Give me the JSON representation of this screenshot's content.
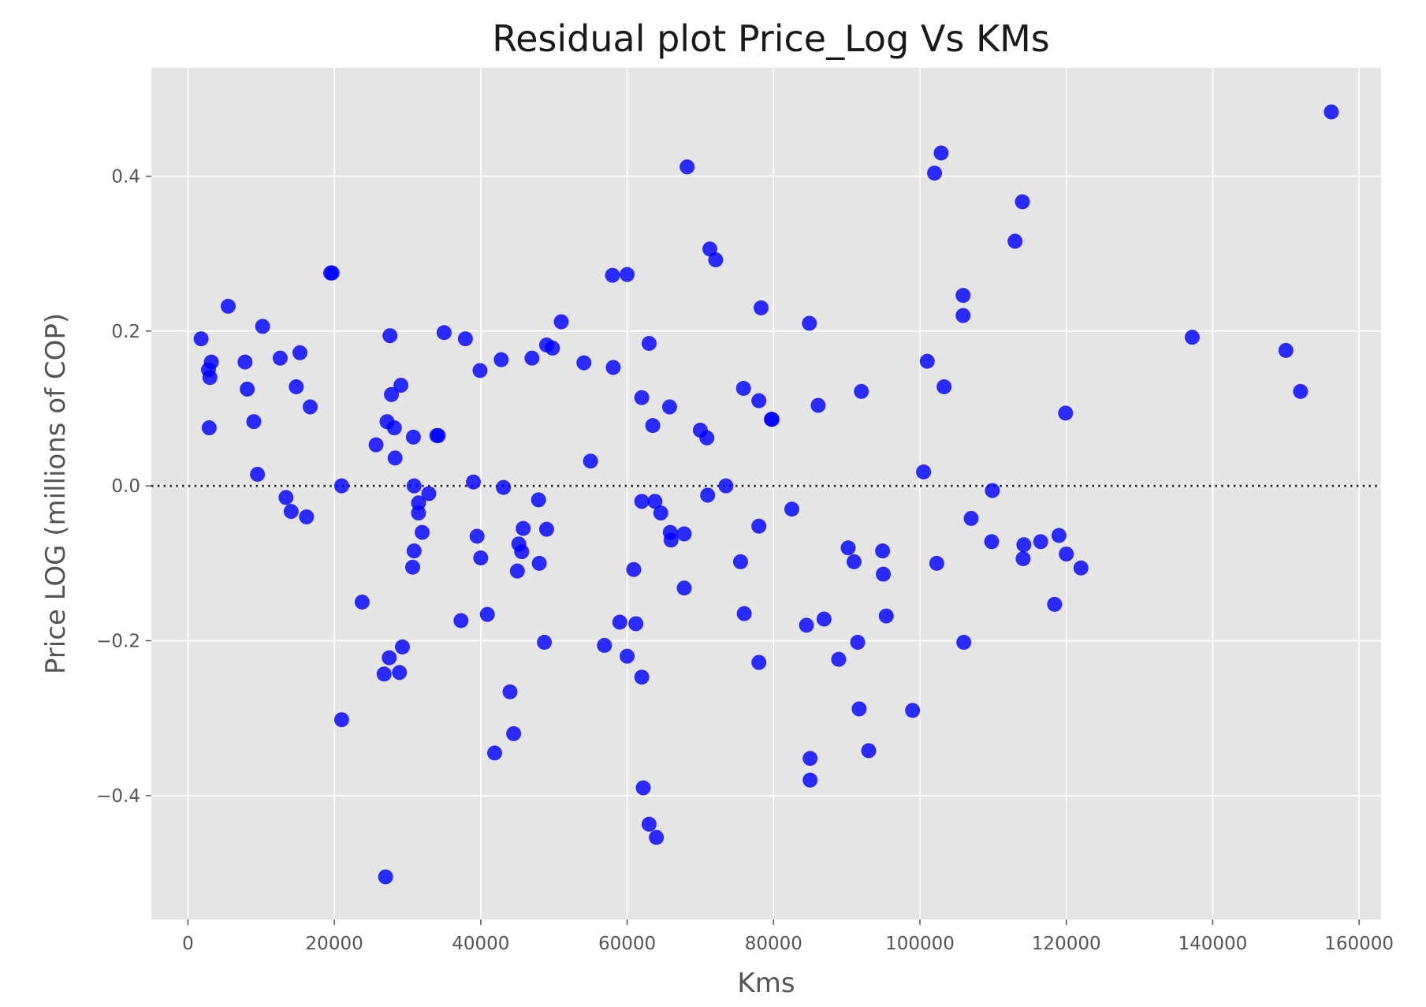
{
  "chart_data": {
    "type": "scatter",
    "title": "Residual plot Price_Log Vs KMs",
    "xlabel": "Kms",
    "ylabel": "Price LOG (millions of COP)",
    "xlim": [
      -5000,
      163000
    ],
    "ylim": [
      -0.56,
      0.54
    ],
    "xticks": [
      0,
      20000,
      40000,
      60000,
      80000,
      100000,
      120000,
      140000,
      160000
    ],
    "yticks": [
      -0.4,
      -0.2,
      0.0,
      0.2,
      0.4
    ],
    "ytick_labels": [
      "−0.4",
      "−0.2",
      "0.0",
      "0.2",
      "0.4"
    ],
    "grid": true,
    "reference_line": {
      "y": 0.0,
      "style": "dotted",
      "color": "#222222"
    },
    "colors": {
      "background": "#e5e5e5",
      "grid": "#ffffff",
      "points": "#0000ff"
    },
    "points": [
      [
        1800,
        0.19
      ],
      [
        2800,
        0.15
      ],
      [
        3000,
        0.14
      ],
      [
        3200,
        0.16
      ],
      [
        2900,
        0.075
      ],
      [
        5500,
        0.232
      ],
      [
        7800,
        0.16
      ],
      [
        8100,
        0.125
      ],
      [
        9000,
        0.083
      ],
      [
        9500,
        0.015
      ],
      [
        10200,
        0.206
      ],
      [
        12600,
        0.165
      ],
      [
        13400,
        -0.015
      ],
      [
        14100,
        -0.033
      ],
      [
        14800,
        0.128
      ],
      [
        15300,
        0.172
      ],
      [
        16200,
        -0.04
      ],
      [
        16700,
        0.102
      ],
      [
        19500,
        0.275
      ],
      [
        19700,
        0.275
      ],
      [
        21000,
        0.0
      ],
      [
        21000,
        -0.302
      ],
      [
        23800,
        -0.15
      ],
      [
        25700,
        0.053
      ],
      [
        27200,
        0.083
      ],
      [
        27600,
        0.194
      ],
      [
        27800,
        0.118
      ],
      [
        28200,
        0.075
      ],
      [
        28300,
        0.036
      ],
      [
        29100,
        0.13
      ],
      [
        26800,
        -0.243
      ],
      [
        27500,
        -0.222
      ],
      [
        28900,
        -0.241
      ],
      [
        29300,
        -0.208
      ],
      [
        27000,
        -0.505
      ],
      [
        30800,
        0.063
      ],
      [
        30900,
        0.0
      ],
      [
        31500,
        -0.022
      ],
      [
        31500,
        -0.035
      ],
      [
        32000,
        -0.06
      ],
      [
        30900,
        -0.084
      ],
      [
        30700,
        -0.105
      ],
      [
        32900,
        -0.01
      ],
      [
        34000,
        0.065
      ],
      [
        34200,
        0.065
      ],
      [
        35000,
        0.198
      ],
      [
        37300,
        -0.174
      ],
      [
        37900,
        0.19
      ],
      [
        39000,
        0.005
      ],
      [
        39500,
        -0.065
      ],
      [
        39900,
        0.149
      ],
      [
        40000,
        -0.093
      ],
      [
        40900,
        -0.166
      ],
      [
        41900,
        -0.345
      ],
      [
        42800,
        0.163
      ],
      [
        43100,
        -0.002
      ],
      [
        44000,
        -0.266
      ],
      [
        44500,
        -0.32
      ],
      [
        45000,
        -0.11
      ],
      [
        45200,
        -0.075
      ],
      [
        45600,
        -0.085
      ],
      [
        45800,
        -0.055
      ],
      [
        47000,
        0.165
      ],
      [
        47900,
        -0.018
      ],
      [
        48000,
        -0.1
      ],
      [
        48700,
        -0.202
      ],
      [
        49000,
        0.182
      ],
      [
        49000,
        -0.056
      ],
      [
        49800,
        0.178
      ],
      [
        51000,
        0.212
      ],
      [
        54100,
        0.159
      ],
      [
        55000,
        0.032
      ],
      [
        56900,
        -0.206
      ],
      [
        58000,
        0.272
      ],
      [
        58100,
        0.153
      ],
      [
        59000,
        -0.176
      ],
      [
        60000,
        0.273
      ],
      [
        60000,
        -0.22
      ],
      [
        60900,
        -0.108
      ],
      [
        61200,
        -0.178
      ],
      [
        62000,
        0.114
      ],
      [
        62000,
        -0.02
      ],
      [
        62000,
        -0.247
      ],
      [
        62200,
        -0.39
      ],
      [
        63000,
        0.184
      ],
      [
        63000,
        -0.437
      ],
      [
        63500,
        0.078
      ],
      [
        63800,
        -0.02
      ],
      [
        64000,
        -0.454
      ],
      [
        64600,
        -0.035
      ],
      [
        65800,
        0.102
      ],
      [
        65900,
        -0.06
      ],
      [
        66000,
        -0.07
      ],
      [
        67800,
        -0.062
      ],
      [
        67800,
        -0.132
      ],
      [
        68200,
        0.412
      ],
      [
        70000,
        0.072
      ],
      [
        70900,
        0.062
      ],
      [
        71000,
        -0.012
      ],
      [
        71300,
        0.306
      ],
      [
        72100,
        0.292
      ],
      [
        73500,
        0.0
      ],
      [
        75500,
        -0.098
      ],
      [
        75900,
        0.126
      ],
      [
        76000,
        -0.165
      ],
      [
        78000,
        0.11
      ],
      [
        78000,
        -0.052
      ],
      [
        78000,
        -0.228
      ],
      [
        78300,
        0.23
      ],
      [
        79700,
        0.086
      ],
      [
        79800,
        0.086
      ],
      [
        82500,
        -0.03
      ],
      [
        84500,
        -0.18
      ],
      [
        84900,
        0.21
      ],
      [
        85000,
        -0.352
      ],
      [
        85000,
        -0.38
      ],
      [
        86100,
        0.104
      ],
      [
        86900,
        -0.172
      ],
      [
        88900,
        -0.224
      ],
      [
        90200,
        -0.08
      ],
      [
        91000,
        -0.098
      ],
      [
        91500,
        -0.202
      ],
      [
        91700,
        -0.288
      ],
      [
        92000,
        0.122
      ],
      [
        93000,
        -0.342
      ],
      [
        94900,
        -0.084
      ],
      [
        95000,
        -0.114
      ],
      [
        95400,
        -0.168
      ],
      [
        99000,
        -0.29
      ],
      [
        100500,
        0.018
      ],
      [
        101000,
        0.161
      ],
      [
        102000,
        0.404
      ],
      [
        102300,
        -0.1
      ],
      [
        102900,
        0.43
      ],
      [
        103300,
        0.128
      ],
      [
        105900,
        0.246
      ],
      [
        105900,
        0.22
      ],
      [
        106000,
        -0.202
      ],
      [
        107000,
        -0.042
      ],
      [
        109800,
        -0.072
      ],
      [
        109900,
        -0.006
      ],
      [
        113000,
        0.316
      ],
      [
        114000,
        0.367
      ],
      [
        114200,
        -0.076
      ],
      [
        114100,
        -0.094
      ],
      [
        116500,
        -0.072
      ],
      [
        118400,
        -0.153
      ],
      [
        119000,
        -0.064
      ],
      [
        119900,
        0.094
      ],
      [
        120000,
        -0.088
      ],
      [
        122000,
        -0.106
      ],
      [
        137200,
        0.192
      ],
      [
        150000,
        0.175
      ],
      [
        152000,
        0.122
      ],
      [
        156200,
        0.483
      ]
    ]
  }
}
